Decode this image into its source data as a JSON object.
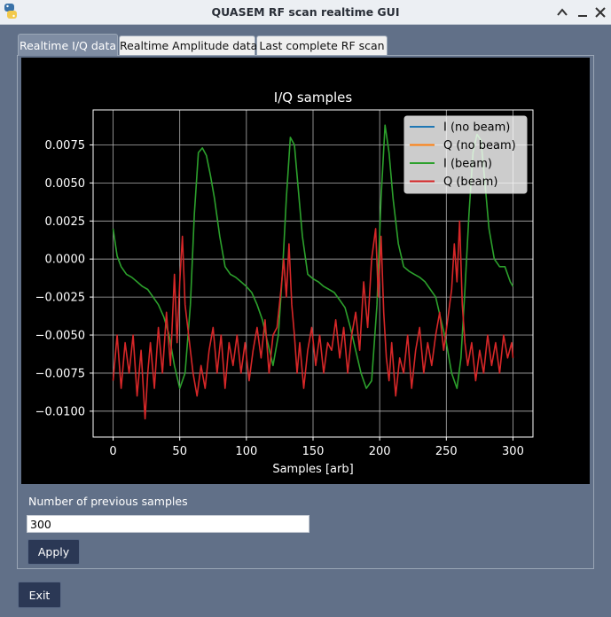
{
  "window": {
    "title": "QUASEM RF scan realtime GUI"
  },
  "tabs": [
    {
      "label": "Realtime I/Q data",
      "active": true
    },
    {
      "label": "Realtime Amplitude data",
      "active": false
    },
    {
      "label": "Last complete RF scan",
      "active": false
    }
  ],
  "controls": {
    "samples_label": "Number of previous samples",
    "samples_value": "300",
    "apply_label": "Apply",
    "exit_label": "Exit"
  },
  "chart_data": {
    "type": "line",
    "title": "I/Q samples",
    "xlabel": "Samples [arb]",
    "ylabel": "",
    "xlim": [
      -15,
      315
    ],
    "ylim": [
      -0.0117,
      0.0098
    ],
    "xticks": [
      0,
      50,
      100,
      150,
      200,
      250,
      300
    ],
    "xtick_labels": [
      "0",
      "50",
      "100",
      "150",
      "200",
      "250",
      "300"
    ],
    "yticks": [
      0.0075,
      0.005,
      0.0025,
      0.0,
      -0.0025,
      -0.005,
      -0.0075,
      -0.01
    ],
    "ytick_labels": [
      "0.0075",
      "0.0050",
      "0.0025",
      "0.0000",
      "−0.0025",
      "−0.0050",
      "−0.0075",
      "−0.0100"
    ],
    "grid": true,
    "legend_position": "top-right",
    "series": [
      {
        "name": "I (no beam)",
        "color": "#1f77b4",
        "x": [],
        "y": []
      },
      {
        "name": "Q (no beam)",
        "color": "#ff7f0e",
        "x": [],
        "y": []
      },
      {
        "name": "I (beam)",
        "color": "#2ca02c",
        "x": [
          0,
          3,
          6,
          10,
          14,
          18,
          22,
          26,
          30,
          34,
          38,
          42,
          46,
          50,
          54,
          58,
          61,
          64,
          67,
          70,
          73,
          76,
          80,
          84,
          88,
          92,
          96,
          100,
          104,
          108,
          112,
          116,
          120,
          124,
          127,
          130,
          133,
          136,
          139,
          142,
          146,
          150,
          154,
          158,
          162,
          166,
          170,
          174,
          178,
          182,
          186,
          190,
          194,
          198,
          201,
          204,
          207,
          210,
          214,
          218,
          222,
          226,
          230,
          234,
          238,
          242,
          246,
          250,
          254,
          258,
          261,
          264,
          267,
          270,
          273,
          276,
          279,
          282,
          286,
          290,
          294,
          298,
          300
        ],
        "y": [
          0.002,
          0.0002,
          -0.0005,
          -0.001,
          -0.0012,
          -0.0015,
          -0.0018,
          -0.002,
          -0.0025,
          -0.003,
          -0.0038,
          -0.005,
          -0.007,
          -0.0085,
          -0.0075,
          -0.003,
          0.003,
          0.007,
          0.0073,
          0.0068,
          0.0055,
          0.004,
          0.0015,
          -0.0005,
          -0.001,
          -0.0012,
          -0.0015,
          -0.0018,
          -0.0022,
          -0.003,
          -0.004,
          -0.0055,
          -0.007,
          -0.005,
          -0.001,
          0.004,
          0.008,
          0.0075,
          0.0045,
          0.0015,
          -0.001,
          -0.0013,
          -0.0015,
          -0.0018,
          -0.002,
          -0.0022,
          -0.0027,
          -0.0032,
          -0.0045,
          -0.006,
          -0.0075,
          -0.0085,
          -0.008,
          -0.003,
          0.004,
          0.0088,
          0.007,
          0.004,
          0.001,
          -0.0005,
          -0.0008,
          -0.001,
          -0.0012,
          -0.0015,
          -0.002,
          -0.0025,
          -0.004,
          -0.0055,
          -0.0075,
          -0.0085,
          -0.0065,
          -0.002,
          0.003,
          0.007,
          0.0082,
          0.0078,
          0.005,
          0.002,
          0.0,
          -0.0005,
          -0.0005,
          -0.0015,
          -0.0018
        ]
      },
      {
        "name": "Q (beam)",
        "color": "#d62728",
        "x": [
          0,
          3,
          6,
          9,
          12,
          15,
          18,
          21,
          24,
          26,
          28,
          31,
          34,
          37,
          40,
          43,
          46,
          48,
          50,
          52,
          54,
          56,
          58,
          60,
          63,
          66,
          69,
          72,
          75,
          78,
          81,
          84,
          87,
          90,
          93,
          96,
          99,
          102,
          105,
          108,
          111,
          114,
          117,
          120,
          123,
          126,
          128,
          130,
          132,
          134,
          136,
          138,
          140,
          143,
          146,
          149,
          152,
          155,
          158,
          161,
          164,
          167,
          170,
          173,
          176,
          179,
          182,
          185,
          188,
          191,
          194,
          197,
          199,
          201,
          203,
          205,
          207,
          209,
          212,
          215,
          218,
          221,
          224,
          227,
          230,
          233,
          236,
          239,
          242,
          245,
          248,
          251,
          254,
          256,
          258,
          260,
          262,
          264,
          266,
          269,
          272,
          275,
          278,
          281,
          284,
          287,
          290,
          293,
          296,
          299,
          300
        ],
        "y": [
          -0.008,
          -0.005,
          -0.0085,
          -0.0055,
          -0.0075,
          -0.005,
          -0.009,
          -0.006,
          -0.0105,
          -0.0075,
          -0.0055,
          -0.0085,
          -0.0045,
          -0.0075,
          -0.0035,
          -0.007,
          -0.001,
          -0.0055,
          -0.0015,
          0.0015,
          -0.003,
          -0.0045,
          -0.006,
          -0.0075,
          -0.009,
          -0.007,
          -0.0085,
          -0.006,
          -0.0045,
          -0.0075,
          -0.005,
          -0.0085,
          -0.0055,
          -0.007,
          -0.005,
          -0.0075,
          -0.0055,
          -0.008,
          -0.006,
          -0.0045,
          -0.0065,
          -0.004,
          -0.0075,
          -0.005,
          -0.0045,
          -0.002,
          0.0,
          -0.0025,
          0.001,
          -0.003,
          -0.005,
          -0.0075,
          -0.0055,
          -0.0085,
          -0.006,
          -0.0045,
          -0.007,
          -0.005,
          -0.0075,
          -0.0055,
          -0.006,
          -0.004,
          -0.0065,
          -0.0045,
          -0.0075,
          -0.005,
          -0.0035,
          -0.006,
          -0.0015,
          -0.0045,
          0.0,
          0.002,
          -0.0025,
          0.0015,
          -0.0035,
          -0.0065,
          -0.008,
          -0.0055,
          -0.009,
          -0.0065,
          -0.0075,
          -0.005,
          -0.0085,
          -0.006,
          -0.0045,
          -0.0075,
          -0.0055,
          -0.007,
          -0.005,
          -0.0035,
          -0.006,
          -0.004,
          -0.002,
          0.001,
          -0.0015,
          0.0025,
          -0.003,
          -0.0055,
          -0.007,
          -0.0055,
          -0.008,
          -0.006,
          -0.0075,
          -0.005,
          -0.007,
          -0.0055,
          -0.0075,
          -0.005,
          -0.0065,
          -0.0055,
          -0.0065
        ]
      }
    ]
  }
}
